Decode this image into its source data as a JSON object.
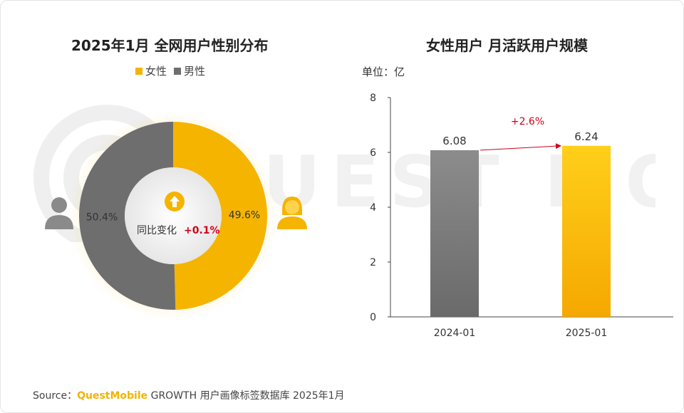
{
  "left_chart": {
    "title": "2025年1月 全网用户性别分布",
    "legend": [
      {
        "label": "女性",
        "color": "#f5b400"
      },
      {
        "label": "男性",
        "color": "#6e6e6e"
      }
    ],
    "center_prefix": "同比变化",
    "center_change": "+0.1%",
    "male_icon": "male-user-icon",
    "female_icon": "female-user-icon",
    "up_icon": "up-arrow-icon"
  },
  "right_chart": {
    "title": "女性用户 月活跃用户规模",
    "unit": "单位：亿",
    "growth_label": "+2.6%"
  },
  "source": {
    "prefix": "Source：",
    "brand": "QuestMobile",
    "suffix": " GROWTH 用户画像标签数据库 2025年1月"
  },
  "watermark": "QUEST MOBILE",
  "colors": {
    "female": "#f5b400",
    "male": "#6e6e6e",
    "growth": "#d0021b"
  },
  "chart_data": [
    {
      "type": "pie",
      "categories": [
        "女性",
        "男性"
      ],
      "values": [
        49.6,
        50.4
      ],
      "labels": [
        "49.6%",
        "50.4%"
      ]
    },
    {
      "type": "bar",
      "categories": [
        "2024-01",
        "2025-01"
      ],
      "values": [
        6.08,
        6.24
      ],
      "labels": [
        "6.08",
        "6.24"
      ],
      "ylim": [
        0,
        8
      ],
      "yticks": [
        0,
        2,
        4,
        6,
        8
      ]
    }
  ]
}
